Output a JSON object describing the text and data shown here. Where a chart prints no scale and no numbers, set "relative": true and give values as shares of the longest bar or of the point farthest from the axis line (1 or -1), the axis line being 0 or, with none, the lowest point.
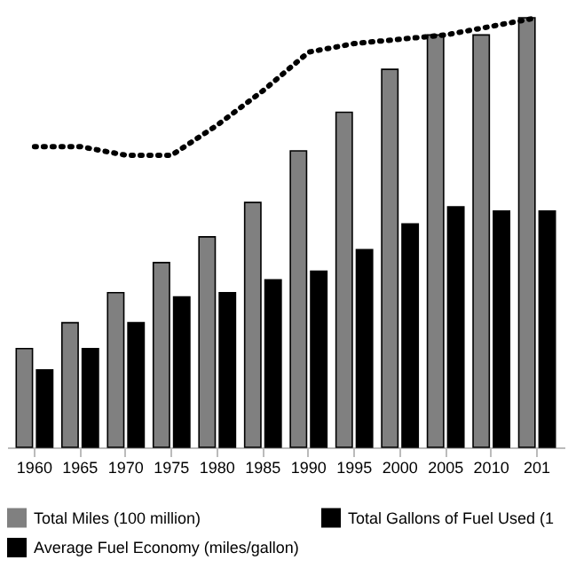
{
  "chart_data": {
    "type": "bar",
    "relative": true,
    "categories": [
      "1960",
      "1965",
      "1970",
      "1975",
      "1980",
      "1985",
      "1990",
      "1995",
      "2000",
      "2005",
      "2010",
      "201"
    ],
    "series": [
      {
        "name": "Total Miles (100 million)",
        "color": "#808080",
        "values": [
          0.23,
          0.29,
          0.36,
          0.43,
          0.49,
          0.57,
          0.69,
          0.78,
          0.88,
          0.96,
          0.96,
          1.0
        ]
      },
      {
        "name": "Total Gallons of Fuel Used (1",
        "color": "#000000",
        "values": [
          0.18,
          0.23,
          0.29,
          0.35,
          0.36,
          0.39,
          0.41,
          0.46,
          0.52,
          0.56,
          0.55,
          0.55
        ]
      },
      {
        "name": "Average Fuel Economy (miles/gallon)",
        "type": "line",
        "color": "#000000",
        "line_style": "dotted",
        "marker": "none",
        "values": [
          0.7,
          0.7,
          0.68,
          0.68,
          0.75,
          0.83,
          0.92,
          0.94,
          0.95,
          0.96,
          0.98,
          1.0
        ]
      }
    ],
    "grid": false,
    "legend": "bottom"
  }
}
